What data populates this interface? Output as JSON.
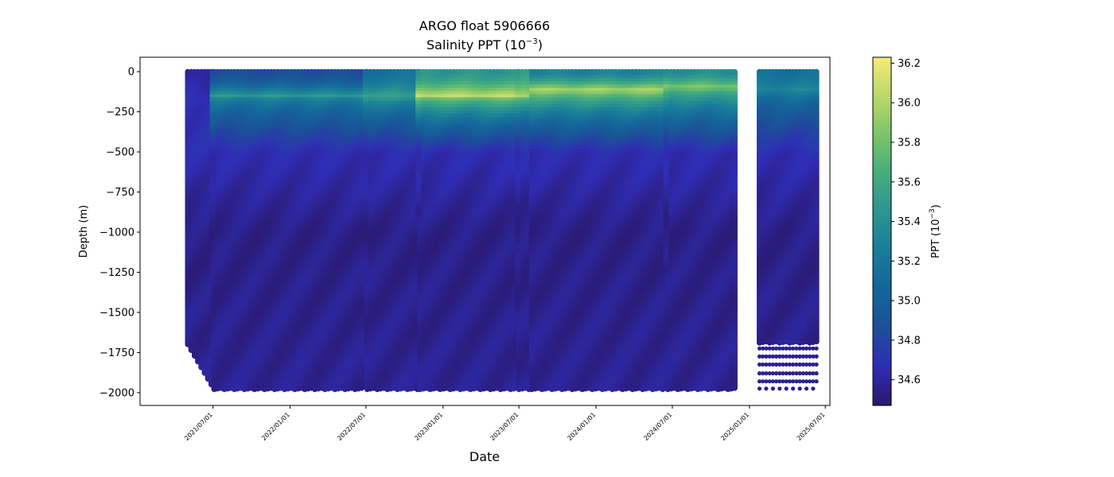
{
  "chart_data": {
    "type": "scatter",
    "title": "ARGO float 5906666",
    "subtitle": "Salinity PPT (10",
    "subtitle_exponent": "−3",
    "subtitle_close": ")",
    "xlabel": "Date",
    "ylabel": "Depth (m)",
    "colorbar_label": "PPT (10",
    "colorbar_label_exponent": "−3",
    "colorbar_label_close": ")",
    "colormap": "haline",
    "colormap_stops": [
      "#2a186c",
      "#2f2db5",
      "#1d4f99",
      "#14659a",
      "#197c9a",
      "#2c9590",
      "#45ad7c",
      "#7cc46a",
      "#bdd869",
      "#f5eb74"
    ],
    "ylim": [
      -2080,
      90
    ],
    "y_ticks": [
      0,
      -250,
      -500,
      -750,
      -1000,
      -1250,
      -1500,
      -1750,
      -2000
    ],
    "y_tick_labels": [
      "0",
      "−250",
      "−500",
      "−750",
      "−1000",
      "−1250",
      "−1500",
      "−1750",
      "−2000"
    ],
    "x_range": [
      "2021-01-08",
      "2025-07-12"
    ],
    "x_ticks": [
      "2021-07-01",
      "2022-01-01",
      "2022-07-01",
      "2023-01-01",
      "2023-07-01",
      "2024-01-01",
      "2024-07-01",
      "2025-01-01",
      "2025-07-01"
    ],
    "x_tick_labels": [
      "2021/07/01",
      "2022/01/01",
      "2022/07/01",
      "2023/01/01",
      "2023/07/01",
      "2024/01/01",
      "2024/07/01",
      "2025/01/01",
      "2025/07/01"
    ],
    "colorbar_range": [
      34.47,
      36.23
    ],
    "colorbar_ticks": [
      34.6,
      34.8,
      35.0,
      35.2,
      35.4,
      35.6,
      35.8,
      36.0,
      36.2
    ],
    "colorbar_tick_labels": [
      "34.6",
      "34.8",
      "35.0",
      "35.2",
      "35.4",
      "35.6",
      "35.8",
      "36.0",
      "36.2"
    ],
    "profile_segments": [
      {
        "start": "2021-05-02",
        "end": "2021-06-27",
        "cadence_days": 8,
        "max_depth": -1700,
        "end_depth": -1950,
        "surface_salinity": 34.58,
        "max_salinity": 34.7,
        "salinity_max_depth": -170
      },
      {
        "start": "2021-07-04",
        "end": "2022-06-27",
        "cadence_days": 8,
        "max_depth": -1980,
        "surface_salinity": 34.85,
        "max_salinity": 35.45,
        "salinity_max_depth": -150
      },
      {
        "start": "2022-07-04",
        "end": "2022-10-31",
        "cadence_days": 8,
        "max_depth": -1980,
        "surface_salinity": 35.15,
        "max_salinity": 35.55,
        "salinity_max_depth": -160
      },
      {
        "start": "2022-11-07",
        "end": "2023-06-26",
        "cadence_days": 8,
        "max_depth": -1980,
        "surface_salinity": 35.45,
        "max_salinity": 36.05,
        "salinity_max_depth": -150
      },
      {
        "start": "2023-07-01",
        "end": "2023-07-26",
        "cadence_days": 8,
        "max_depth": -1980,
        "surface_salinity": 35.5,
        "max_salinity": 35.95,
        "salinity_max_depth": -150
      },
      {
        "start": "2023-08-01",
        "end": "2024-06-13",
        "cadence_days": 8,
        "max_depth": -1980,
        "surface_salinity": 35.3,
        "max_salinity": 36.05,
        "salinity_max_depth": -120
      },
      {
        "start": "2024-06-20",
        "end": "2024-11-30",
        "cadence_days": 8,
        "max_depth": -1980,
        "surface_salinity": 35.4,
        "max_salinity": 35.9,
        "salinity_max_depth": -100
      },
      {
        "start": "2025-01-25",
        "end": "2025-06-10",
        "cadence_days": 8,
        "max_depth": -1690,
        "surface_salinity": 35.15,
        "max_salinity": 35.35,
        "salinity_max_depth": -120
      }
    ],
    "short_profiles": [
      {
        "date": "2021-06-30",
        "max_depth": -1020
      },
      {
        "date": "2022-06-30",
        "max_depth": -1280
      },
      {
        "date": "2022-11-03",
        "max_depth": -890
      },
      {
        "date": "2023-06-28",
        "max_depth": -1470
      },
      {
        "date": "2024-06-16",
        "max_depth": -1190
      }
    ],
    "deep_dot_rows_depths": [
      -1725,
      -1775,
      -1825,
      -1880,
      -1930,
      -1975
    ]
  }
}
